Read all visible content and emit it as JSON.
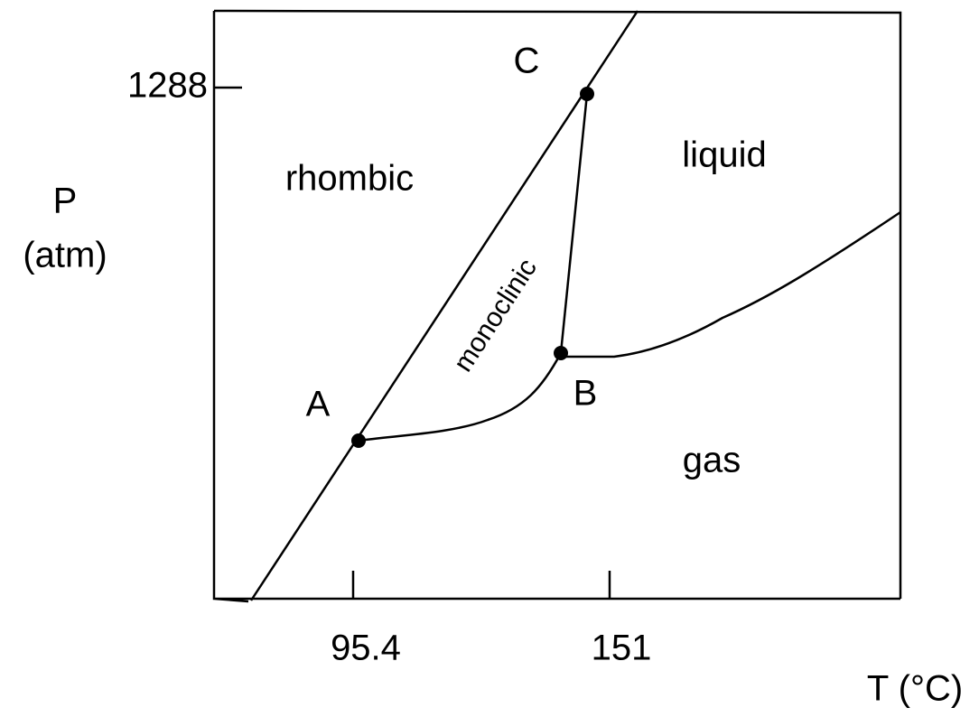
{
  "axes": {
    "x_label": "T (°C)",
    "y_label_symbol": "P",
    "y_label_unit": "(atm)",
    "x_ticks": [
      "95.4",
      "151"
    ],
    "y_ticks": [
      "1288"
    ]
  },
  "regions": [
    "rhombic",
    "monoclinic",
    "liquid",
    "gas"
  ],
  "points": [
    "A",
    "B",
    "C"
  ]
}
